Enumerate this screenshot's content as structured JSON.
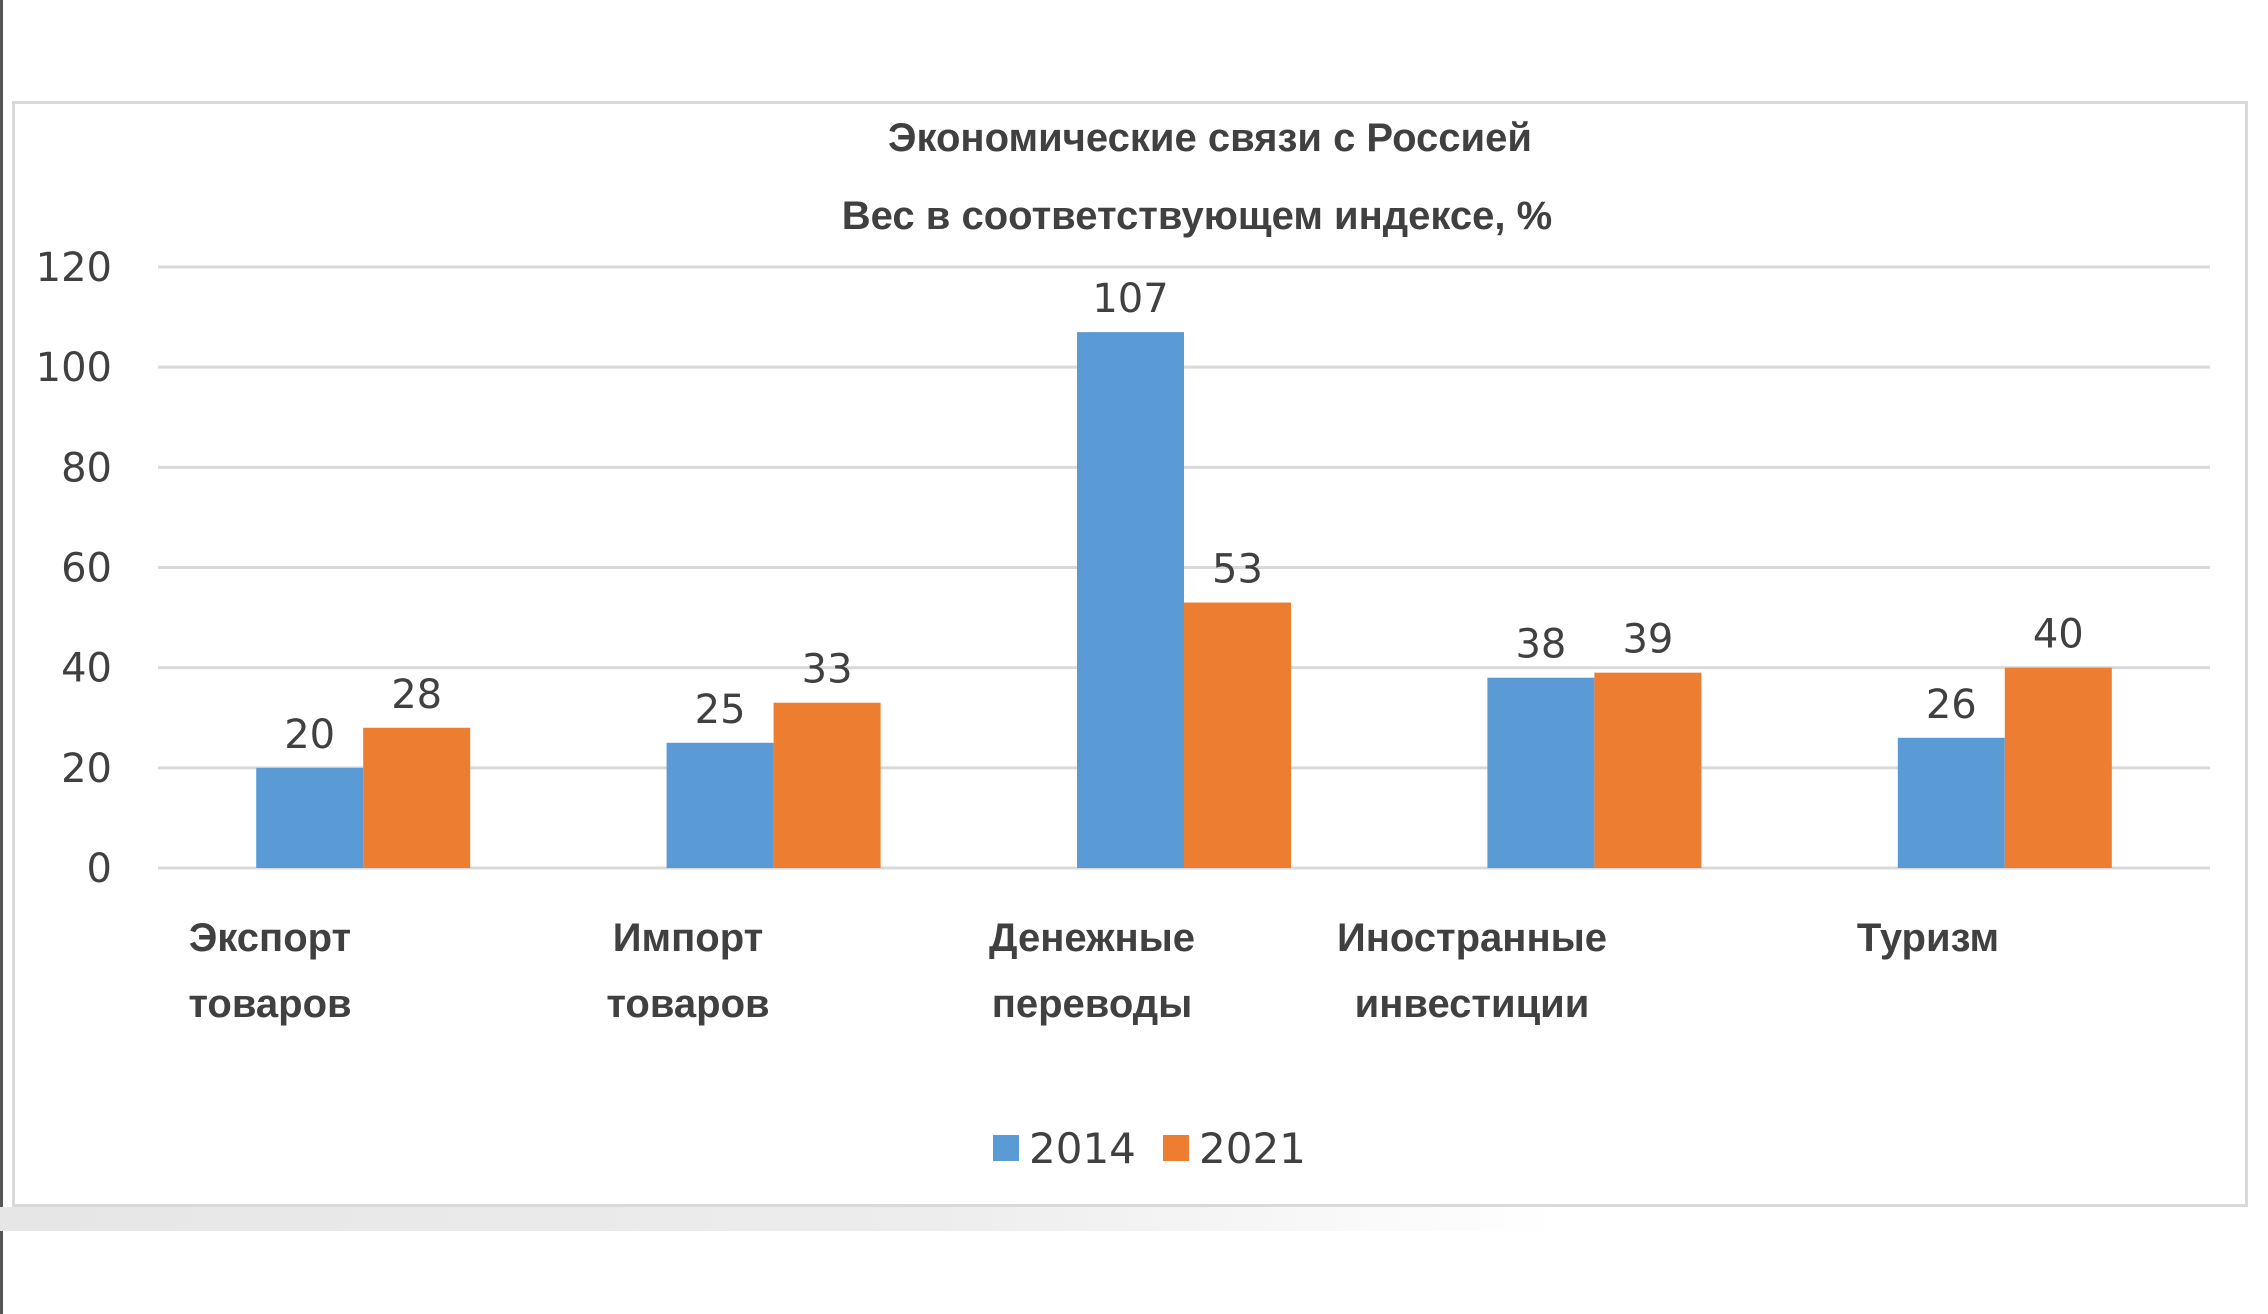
{
  "chart_data": {
    "type": "bar",
    "title": "Экономические связи с Россией",
    "subtitle": "Вес в соответствующем индексе, %",
    "categories": [
      [
        "Экспорт",
        "товаров"
      ],
      [
        "Импорт",
        "товаров"
      ],
      [
        "Денежные",
        "переводы"
      ],
      [
        "Иностранные",
        "инвестиции"
      ],
      [
        "Туризм"
      ]
    ],
    "series": [
      {
        "name": "2014",
        "color": "#5b9bd5",
        "values": [
          20,
          25,
          107,
          38,
          26
        ]
      },
      {
        "name": "2021",
        "color": "#ed7d31",
        "values": [
          28,
          33,
          53,
          39,
          40
        ]
      }
    ],
    "ylim": [
      0,
      120
    ],
    "yticks": [
      0,
      20,
      40,
      60,
      80,
      100,
      120
    ],
    "grid": true,
    "legend": "bottom-center",
    "xlabel": "",
    "ylabel": ""
  }
}
